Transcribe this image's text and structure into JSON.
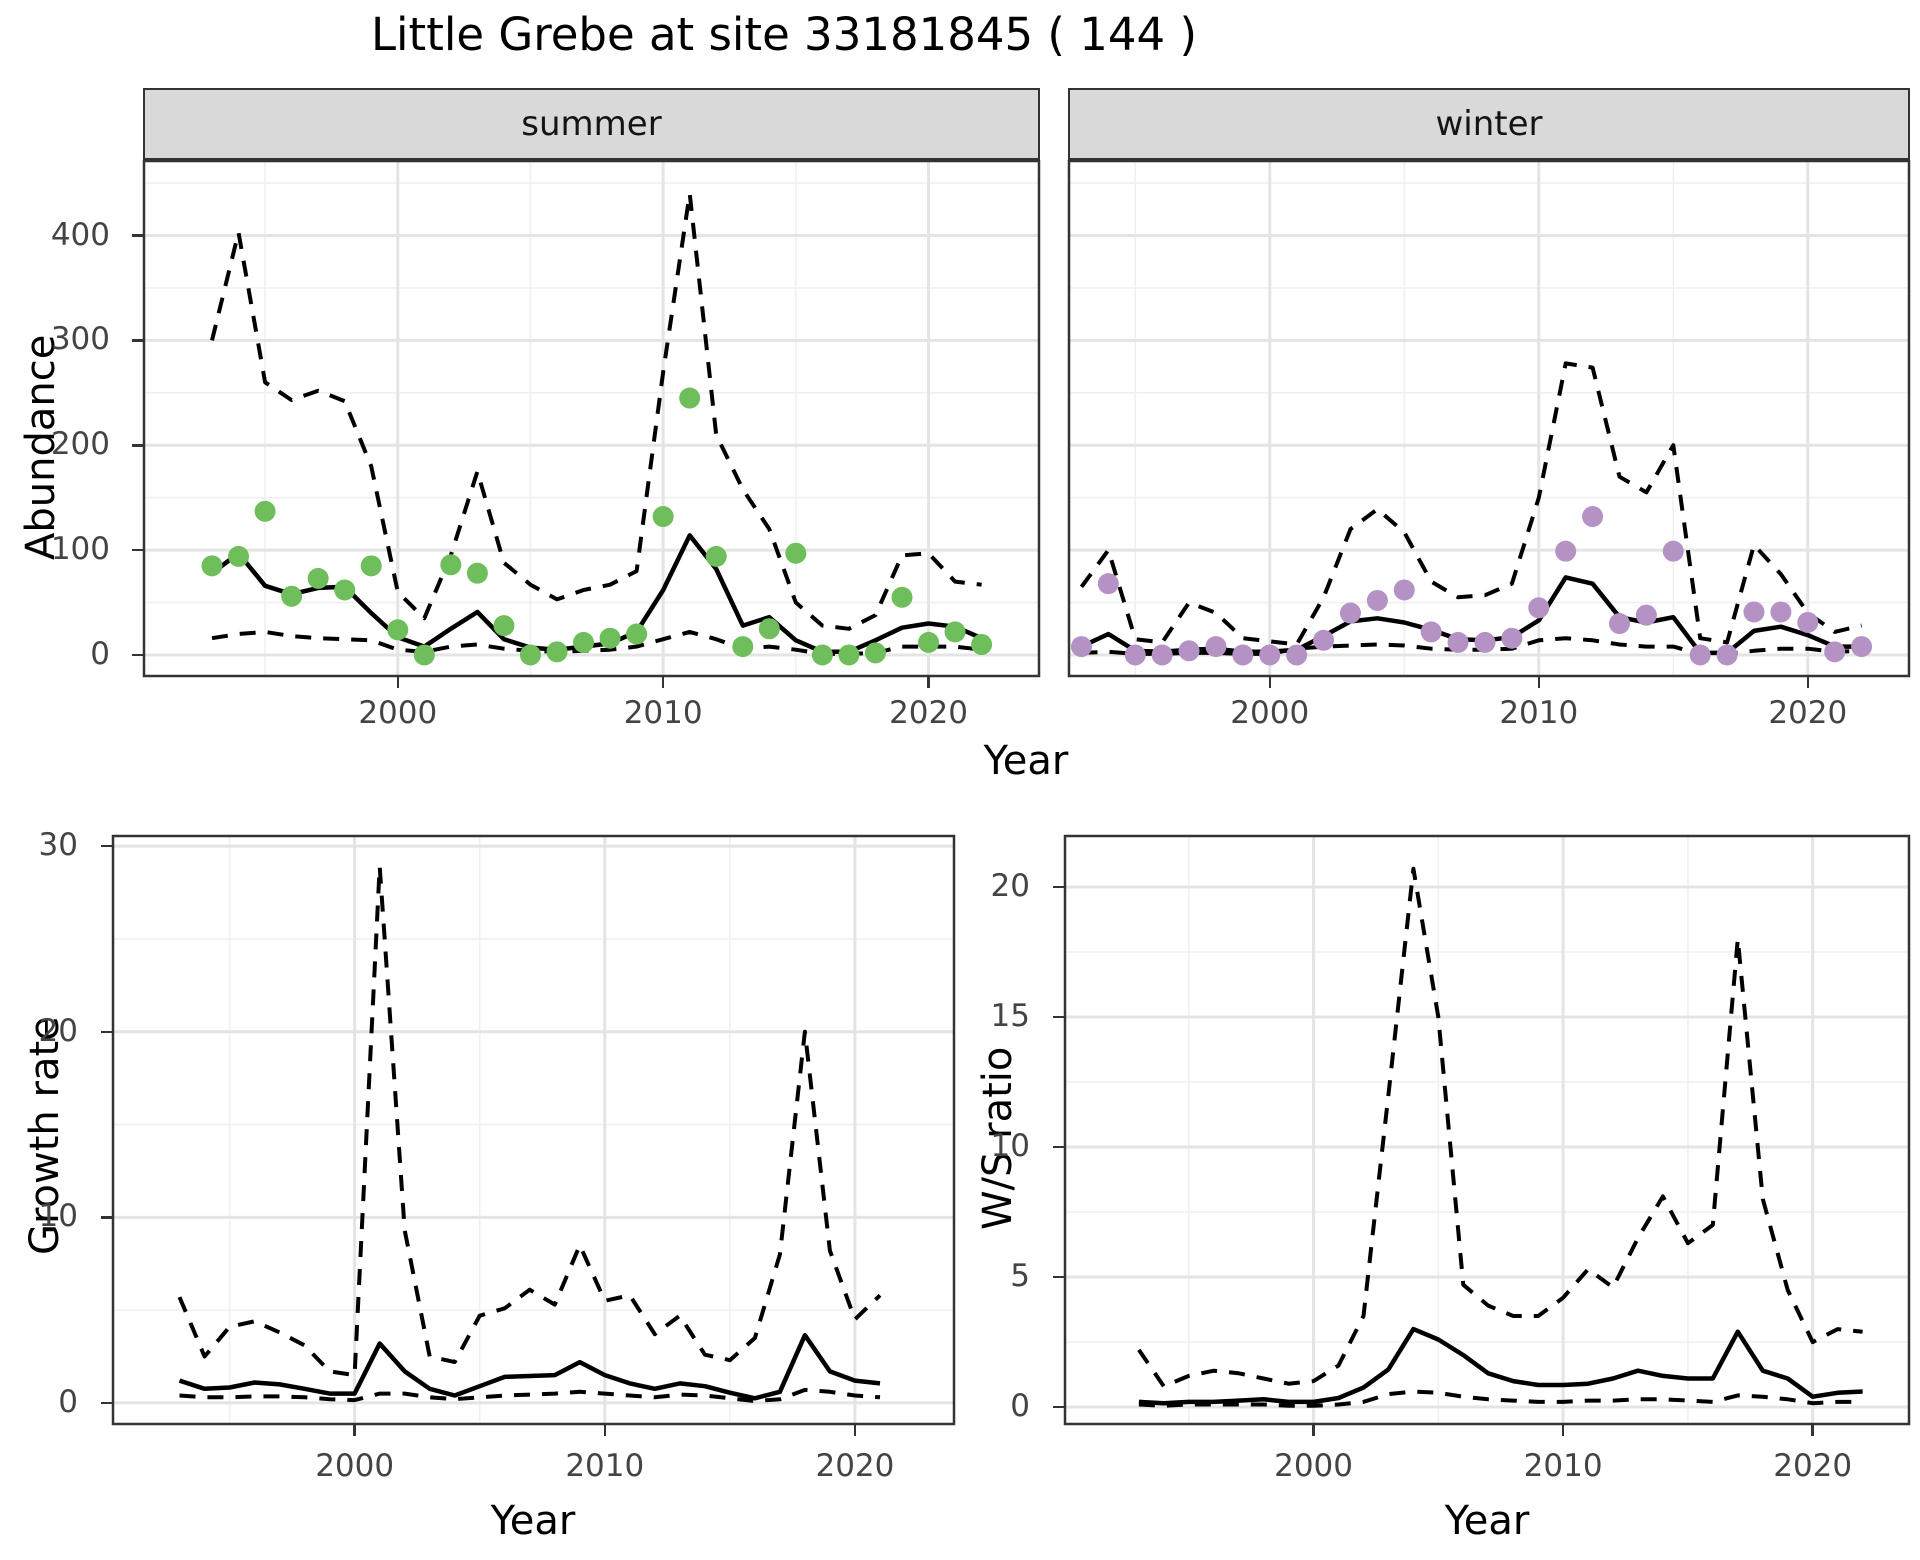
{
  "title": "Little Grebe at site 33181845 ( 144 )",
  "facets": {
    "summer_label": "summer",
    "winter_label": "winter"
  },
  "axis_titles": {
    "abundance": "Abundance",
    "year": "Year",
    "growth": "Growth rate",
    "ws": "W/S ratio"
  },
  "colors": {
    "summer_point": "#6EBE5B",
    "winter_point": "#B592C4",
    "line": "#000000",
    "grid_major": "#E4E4E4",
    "grid_minor": "#F0F0F0",
    "strip_bg": "#D9D9D9",
    "panel_border": "#333333",
    "tick_text": "#444444"
  },
  "chart_data": [
    {
      "type": "line",
      "name": "summer",
      "strip": "summer",
      "xlabel": "Year",
      "ylabel": "Abundance",
      "xlim": [
        1990.4,
        2024.2
      ],
      "ylim": [
        -21,
        472
      ],
      "x_ticks": [
        2000,
        2010,
        2020
      ],
      "x_minor": [
        1995,
        2005,
        2015
      ],
      "y_ticks": [
        0,
        100,
        200,
        300,
        400
      ],
      "y_minor": [
        50,
        150,
        250,
        350,
        450
      ],
      "legend_position": "none",
      "grid": true,
      "x": [
        1993,
        1994,
        1995,
        1996,
        1997,
        1998,
        1999,
        2000,
        2001,
        2002,
        2003,
        2004,
        2005,
        2006,
        2007,
        2008,
        2009,
        2010,
        2011,
        2012,
        2013,
        2014,
        2015,
        2016,
        2017,
        2018,
        2019,
        2020,
        2021,
        2022
      ],
      "series": [
        {
          "name": "observed-count",
          "style": "points",
          "values": [
            85,
            94,
            137,
            56,
            73,
            62,
            85,
            24,
            0,
            86,
            78,
            28,
            0,
            3,
            12,
            16,
            20,
            132,
            245,
            94,
            8,
            25,
            97,
            0,
            0,
            2,
            55,
            12,
            22,
            10
          ]
        },
        {
          "name": "median-estimate",
          "style": "solid",
          "values": [
            78,
            97,
            66,
            58,
            64,
            65,
            40,
            17,
            8,
            25,
            41,
            15,
            7,
            5,
            8,
            11,
            22,
            62,
            114,
            82,
            28,
            36,
            14,
            3,
            3,
            14,
            26,
            30,
            27,
            16
          ]
        },
        {
          "name": "upper-ci",
          "style": "dashed",
          "values": [
            300,
            403,
            260,
            243,
            252,
            242,
            180,
            60,
            35,
            95,
            175,
            88,
            67,
            53,
            62,
            67,
            80,
            270,
            440,
            210,
            158,
            120,
            50,
            28,
            25,
            38,
            95,
            97,
            70,
            67
          ]
        },
        {
          "name": "lower-ci",
          "style": "dashed",
          "values": [
            16,
            20,
            22,
            18,
            16,
            15,
            14,
            5,
            3,
            8,
            10,
            6,
            4,
            3,
            4,
            5,
            8,
            15,
            22,
            15,
            6,
            8,
            5,
            1,
            1,
            2,
            8,
            8,
            8,
            5
          ]
        }
      ]
    },
    {
      "type": "line",
      "name": "winter",
      "strip": "winter",
      "xlabel": "Year",
      "ylabel": "Abundance",
      "xlim": [
        1992.5,
        2023.8
      ],
      "ylim": [
        -21,
        472
      ],
      "x_ticks": [
        2000,
        2010,
        2020
      ],
      "x_minor": [
        1995,
        2005,
        2015
      ],
      "y_ticks": [
        0,
        100,
        200,
        300,
        400
      ],
      "y_minor": [
        50,
        150,
        250,
        350,
        450
      ],
      "legend_position": "none",
      "grid": true,
      "x": [
        1993,
        1994,
        1995,
        1996,
        1997,
        1998,
        1999,
        2000,
        2001,
        2002,
        2003,
        2004,
        2005,
        2006,
        2007,
        2008,
        2009,
        2010,
        2011,
        2012,
        2013,
        2014,
        2015,
        2016,
        2017,
        2018,
        2019,
        2020,
        2021,
        2022
      ],
      "series": [
        {
          "name": "observed-count",
          "style": "points",
          "values": [
            8,
            68,
            0,
            0,
            4,
            8,
            0,
            0,
            0,
            14,
            40,
            52,
            62,
            22,
            12,
            12,
            16,
            45,
            99,
            132,
            30,
            38,
            99,
            0,
            0,
            41,
            41,
            31,
            3,
            8
          ]
        },
        {
          "name": "median-estimate",
          "style": "solid",
          "values": [
            8,
            20,
            4,
            3,
            5,
            6,
            3,
            3,
            5,
            18,
            32,
            35,
            31,
            24,
            15,
            14,
            17,
            33,
            74,
            68,
            36,
            31,
            36,
            2,
            2,
            23,
            27,
            19,
            8,
            8
          ]
        },
        {
          "name": "upper-ci",
          "style": "dashed",
          "values": [
            65,
            100,
            15,
            12,
            50,
            40,
            16,
            13,
            10,
            55,
            120,
            139,
            117,
            70,
            55,
            57,
            68,
            150,
            278,
            274,
            170,
            155,
            200,
            16,
            12,
            105,
            77,
            40,
            22,
            28
          ]
        },
        {
          "name": "lower-ci",
          "style": "dashed",
          "values": [
            2,
            3,
            1,
            1,
            2,
            2,
            1,
            1,
            6,
            8,
            9,
            10,
            9,
            6,
            5,
            5,
            6,
            14,
            16,
            14,
            10,
            8,
            8,
            1,
            1,
            4,
            6,
            6,
            3,
            4
          ]
        }
      ]
    },
    {
      "type": "line",
      "name": "growth",
      "strip": "",
      "xlabel": "Year",
      "ylabel": "Growth rate",
      "xlim": [
        1990.3,
        2024.0
      ],
      "ylim": [
        -1.19,
        30.6
      ],
      "x_ticks": [
        2000,
        2010,
        2020
      ],
      "x_minor": [
        1995,
        2005,
        2015
      ],
      "y_ticks": [
        0,
        10,
        20,
        30
      ],
      "y_minor": [
        5,
        15,
        25
      ],
      "legend_position": "none",
      "grid": true,
      "x": [
        1993,
        1994,
        1995,
        1996,
        1997,
        1998,
        1999,
        2000,
        2001,
        2002,
        2003,
        2004,
        2005,
        2006,
        2007,
        2008,
        2009,
        2010,
        2011,
        2012,
        2013,
        2014,
        2015,
        2016,
        2017,
        2018,
        2019,
        2020,
        2021
      ],
      "series": [
        {
          "name": "median-growth-rate",
          "style": "solid",
          "values": [
            1.2,
            0.76,
            0.83,
            1.1,
            1.0,
            0.76,
            0.5,
            0.5,
            3.2,
            1.7,
            0.76,
            0.4,
            0.9,
            1.4,
            1.45,
            1.5,
            2.2,
            1.5,
            1.05,
            0.76,
            1.05,
            0.9,
            0.55,
            0.25,
            0.6,
            3.65,
            1.7,
            1.2,
            1.05
          ]
        },
        {
          "name": "upper-ci",
          "style": "dashed",
          "values": [
            5.7,
            2.5,
            4.1,
            4.4,
            3.8,
            3.1,
            1.7,
            1.5,
            28.9,
            9.3,
            2.5,
            2.2,
            4.7,
            5.1,
            6.1,
            5.3,
            8.5,
            5.5,
            5.8,
            3.7,
            4.7,
            2.6,
            2.3,
            3.5,
            8.0,
            20.0,
            8.2,
            4.5,
            5.8
          ]
        },
        {
          "name": "lower-ci",
          "style": "dashed",
          "values": [
            0.4,
            0.3,
            0.3,
            0.35,
            0.35,
            0.3,
            0.2,
            0.15,
            0.5,
            0.5,
            0.3,
            0.2,
            0.3,
            0.4,
            0.45,
            0.5,
            0.6,
            0.5,
            0.4,
            0.3,
            0.45,
            0.4,
            0.25,
            0.1,
            0.2,
            0.7,
            0.6,
            0.4,
            0.3
          ]
        }
      ]
    },
    {
      "type": "line",
      "name": "ws",
      "strip": "",
      "xlabel": "Year",
      "ylabel": "W/S ratio",
      "xlim": [
        1990.0,
        2023.9
      ],
      "ylim": [
        -0.69,
        22.0
      ],
      "x_ticks": [
        2000,
        2010,
        2020
      ],
      "x_minor": [
        1995,
        2005,
        2015
      ],
      "y_ticks": [
        0,
        5,
        10,
        15,
        20
      ],
      "y_minor": [
        2.5,
        7.5,
        12.5,
        17.5
      ],
      "legend_position": "none",
      "grid": true,
      "x": [
        1993,
        1994,
        1995,
        1996,
        1997,
        1998,
        1999,
        2000,
        2001,
        2002,
        2003,
        2004,
        2005,
        2006,
        2007,
        2008,
        2009,
        2010,
        2011,
        2012,
        2013,
        2014,
        2015,
        2016,
        2017,
        2018,
        2019,
        2020,
        2021,
        2022
      ],
      "series": [
        {
          "name": "median-ws-ratio",
          "style": "solid",
          "values": [
            0.2,
            0.15,
            0.2,
            0.2,
            0.25,
            0.3,
            0.2,
            0.2,
            0.35,
            0.75,
            1.45,
            3.0,
            2.6,
            2.0,
            1.3,
            1.0,
            0.85,
            0.85,
            0.9,
            1.1,
            1.4,
            1.2,
            1.1,
            1.1,
            2.9,
            1.4,
            1.1,
            0.4,
            0.55,
            0.6
          ]
        },
        {
          "name": "upper-ci",
          "style": "dashed",
          "values": [
            2.2,
            0.8,
            1.2,
            1.4,
            1.3,
            1.1,
            0.9,
            1.0,
            1.6,
            3.5,
            12.0,
            20.7,
            15.0,
            4.7,
            3.9,
            3.5,
            3.5,
            4.2,
            5.3,
            4.6,
            6.5,
            8.1,
            6.3,
            7.0,
            18.0,
            8.0,
            4.5,
            2.5,
            3.0,
            2.9
          ]
        },
        {
          "name": "lower-ci",
          "style": "dashed",
          "values": [
            0.1,
            0.05,
            0.1,
            0.1,
            0.1,
            0.1,
            0.05,
            0.05,
            0.1,
            0.2,
            0.5,
            0.6,
            0.55,
            0.4,
            0.3,
            0.25,
            0.2,
            0.2,
            0.25,
            0.25,
            0.3,
            0.3,
            0.25,
            0.2,
            0.45,
            0.4,
            0.3,
            0.15,
            0.2,
            0.2
          ]
        }
      ]
    }
  ]
}
